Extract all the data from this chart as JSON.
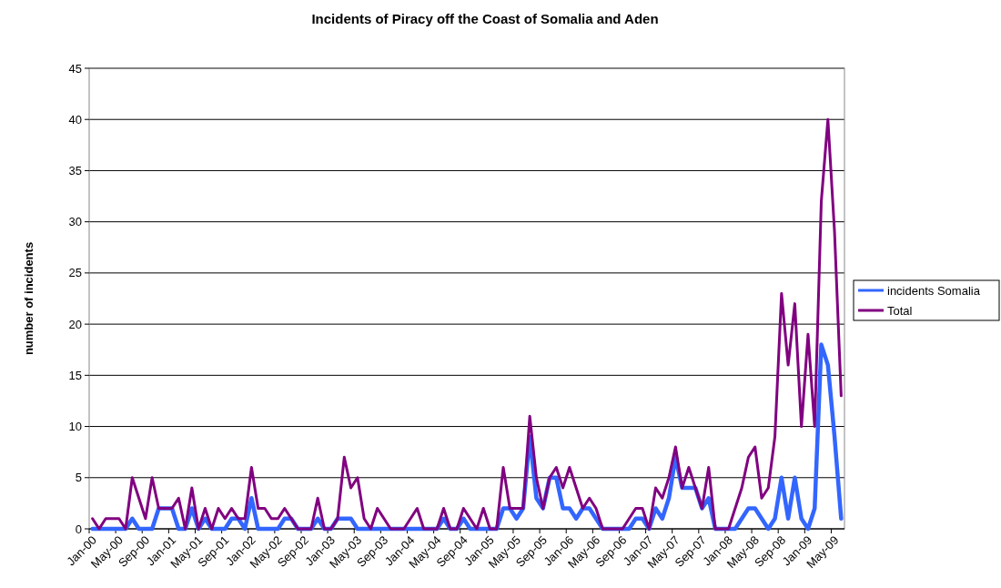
{
  "chart_data": {
    "type": "line",
    "title": "Incidents of Piracy off the Coast of Somalia and Aden",
    "ylabel": "number of incidents",
    "categories": [
      "Jan-00",
      null,
      null,
      null,
      "May-00",
      null,
      null,
      null,
      "Sep-00",
      null,
      null,
      null,
      "Jan-01",
      null,
      null,
      null,
      "May-01",
      null,
      null,
      null,
      "Sep-01",
      null,
      null,
      null,
      "Jan-02",
      null,
      null,
      null,
      "May-02",
      null,
      null,
      null,
      "Sep-02",
      null,
      null,
      null,
      "Jan-03",
      null,
      null,
      null,
      "May-03",
      null,
      null,
      null,
      "Sep-03",
      null,
      null,
      null,
      "Jan-04",
      null,
      null,
      null,
      "May-04",
      null,
      null,
      null,
      "Sep-04",
      null,
      null,
      null,
      "Jan-05",
      null,
      null,
      null,
      "May-05",
      null,
      null,
      null,
      "Sep-05",
      null,
      null,
      null,
      "Jan-06",
      null,
      null,
      null,
      "May-06",
      null,
      null,
      null,
      "Sep-06",
      null,
      null,
      null,
      "Jan-07",
      null,
      null,
      null,
      "May-07",
      null,
      null,
      null,
      "Sep-07",
      null,
      null,
      null,
      "Jan-08",
      null,
      null,
      null,
      "May-08",
      null,
      null,
      null,
      "Sep-08",
      null,
      null,
      null,
      "Jan-09",
      null,
      null,
      null,
      "May-09",
      null
    ],
    "series": [
      {
        "name": "incidents Somalia",
        "color": "#3366ff",
        "values": [
          0,
          0,
          0,
          0,
          0,
          0,
          1,
          0,
          0,
          0,
          2,
          2,
          2,
          0,
          0,
          2,
          0,
          1,
          0,
          0,
          0,
          1,
          1,
          0,
          3,
          0,
          0,
          0,
          0,
          1,
          1,
          0,
          0,
          0,
          1,
          0,
          0,
          1,
          1,
          1,
          0,
          0,
          0,
          0,
          0,
          0,
          0,
          0,
          0,
          0,
          0,
          0,
          0,
          1,
          0,
          0,
          1,
          0,
          0,
          0,
          0,
          0,
          2,
          2,
          1,
          2,
          9,
          3,
          2,
          5,
          5,
          2,
          2,
          1,
          2,
          2,
          1,
          0,
          0,
          0,
          0,
          0,
          1,
          1,
          0,
          2,
          1,
          3,
          7,
          4,
          4,
          4,
          2,
          3,
          0,
          0,
          0,
          0,
          1,
          2,
          2,
          1,
          0,
          1,
          5,
          1,
          5,
          1,
          0,
          2,
          18,
          16,
          9,
          1
        ]
      },
      {
        "name": "Total",
        "color": "#800080",
        "values": [
          1,
          0,
          1,
          1,
          1,
          0,
          5,
          3,
          1,
          5,
          2,
          2,
          2,
          3,
          0,
          4,
          0,
          2,
          0,
          2,
          1,
          2,
          1,
          1,
          6,
          2,
          2,
          1,
          1,
          2,
          1,
          0,
          0,
          0,
          3,
          0,
          0,
          1,
          7,
          4,
          5,
          1,
          0,
          2,
          1,
          0,
          0,
          0,
          1,
          2,
          0,
          0,
          0,
          2,
          0,
          0,
          2,
          1,
          0,
          2,
          0,
          0,
          6,
          2,
          2,
          2,
          11,
          5,
          2,
          5,
          6,
          4,
          6,
          4,
          2,
          3,
          2,
          0,
          0,
          0,
          0,
          1,
          2,
          2,
          0,
          4,
          3,
          5,
          8,
          4,
          6,
          4,
          2,
          6,
          0,
          0,
          0,
          2,
          4,
          7,
          8,
          3,
          4,
          9,
          23,
          16,
          22,
          10,
          19,
          10,
          32,
          40,
          29,
          13
        ]
      }
    ],
    "ylim": [
      0,
      45
    ],
    "yticks": [
      0,
      5,
      10,
      15,
      20,
      25,
      30,
      35,
      40,
      45
    ],
    "grid": "y",
    "legend": "right",
    "marker": "none",
    "line_style": "solid"
  }
}
